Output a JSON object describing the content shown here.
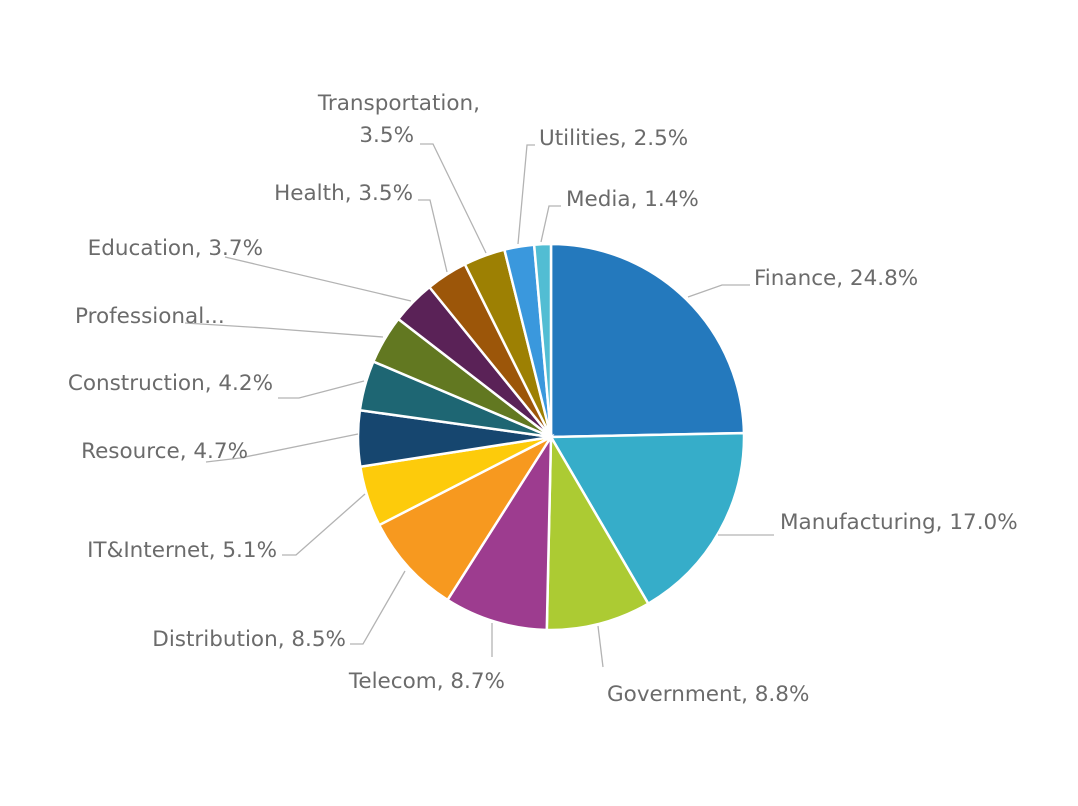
{
  "chart_data": {
    "type": "pie",
    "title": "",
    "start_angle_deg": 0,
    "direction": "clockwise",
    "legend": "none",
    "slices": [
      {
        "category": "Finance",
        "value": 24.8,
        "label": "Finance, 24.8%",
        "color": "#2479BD"
      },
      {
        "category": "Manufacturing",
        "value": 17.0,
        "label": "Manufacturing, 17.0%",
        "color": "#36ADC9"
      },
      {
        "category": "Government",
        "value": 8.8,
        "label": "Government, 8.8%",
        "color": "#ACCB33"
      },
      {
        "category": "Telecom",
        "value": 8.7,
        "label": "Telecom, 8.7%",
        "color": "#9D3C8F"
      },
      {
        "category": "Distribution",
        "value": 8.5,
        "label": "Distribution, 8.5%",
        "color": "#F7991F"
      },
      {
        "category": "IT&Internet",
        "value": 5.1,
        "label": "IT&Internet, 5.1%",
        "color": "#FDCB0B"
      },
      {
        "category": "Resource",
        "value": 4.7,
        "label": "Resource, 4.7%",
        "color": "#16466F"
      },
      {
        "category": "Construction",
        "value": 4.2,
        "label": "Construction, 4.2%",
        "color": "#1E6673"
      },
      {
        "category": "Professional",
        "value": 4.1,
        "label": "Professional...",
        "color": "#627821"
      },
      {
        "category": "Education",
        "value": 3.7,
        "label": "Education, 3.7%",
        "color": "#5A2257"
      },
      {
        "category": "Health",
        "value": 3.5,
        "label": "Health, 3.5%",
        "color": "#9C5609"
      },
      {
        "category": "Transportation",
        "value": 3.5,
        "label": "Transportation, 3.5%",
        "label_lines": [
          "Transportation,",
          "3.5%"
        ],
        "color": "#9D8003"
      },
      {
        "category": "Utilities",
        "value": 2.5,
        "label": "Utilities, 2.5%",
        "color": "#3A98DD"
      },
      {
        "category": "Media",
        "value": 1.4,
        "label": "Media, 1.4%",
        "color": "#52BDD3"
      }
    ]
  }
}
